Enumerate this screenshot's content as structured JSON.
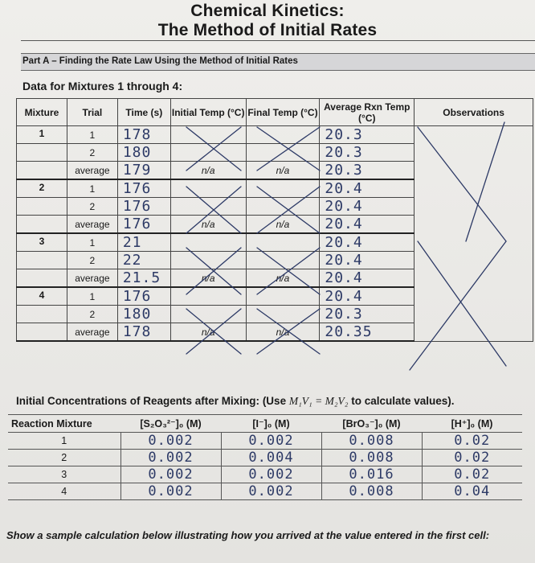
{
  "title_line1": "Chemical Kinetics:",
  "title_line2": "The Method of Initial Rates",
  "part_a_heading": "Part A – Finding the Rate Law Using the Method of Initial Rates",
  "data_heading": "Data for Mixtures 1 through 4:",
  "mixture_table": {
    "headers": {
      "mixture": "Mixture",
      "trial": "Trial",
      "time": "Time (s)",
      "initial_temp": "Initial Temp (°C)",
      "final_temp": "Final Temp (°C)",
      "avg_temp": "Average Rxn Temp (°C)",
      "observations": "Observations"
    },
    "rows": [
      {
        "mixture": "1",
        "trial": "1",
        "time": "178",
        "initial": "",
        "final": "",
        "avg": "20.3"
      },
      {
        "mixture": "",
        "trial": "2",
        "time": "180",
        "initial": "",
        "final": "",
        "avg": "20.3"
      },
      {
        "mixture": "",
        "trial": "average",
        "time": "179",
        "initial": "n/a",
        "final": "n/a",
        "avg": "20.3"
      },
      {
        "mixture": "2",
        "trial": "1",
        "time": "176",
        "initial": "",
        "final": "",
        "avg": "20.4"
      },
      {
        "mixture": "",
        "trial": "2",
        "time": "176",
        "initial": "",
        "final": "",
        "avg": "20.4"
      },
      {
        "mixture": "",
        "trial": "average",
        "time": "176",
        "initial": "n/a",
        "final": "n/a",
        "avg": "20.4"
      },
      {
        "mixture": "3",
        "trial": "1",
        "time": "21",
        "initial": "",
        "final": "",
        "avg": "20.4"
      },
      {
        "mixture": "",
        "trial": "2",
        "time": "22",
        "initial": "",
        "final": "",
        "avg": "20.4"
      },
      {
        "mixture": "",
        "trial": "average",
        "time": "21.5",
        "initial": "n/a",
        "final": "n/a",
        "avg": "20.4"
      },
      {
        "mixture": "4",
        "trial": "1",
        "time": "176",
        "initial": "",
        "final": "",
        "avg": "20.4"
      },
      {
        "mixture": "",
        "trial": "2",
        "time": "180",
        "initial": "",
        "final": "",
        "avg": "20.3"
      },
      {
        "mixture": "",
        "trial": "average",
        "time": "178",
        "initial": "n/a",
        "final": "n/a",
        "avg": "20.35"
      }
    ]
  },
  "concentrations": {
    "heading_prefix": "Initial Concentrations of Reagents after Mixing:",
    "heading_use": "(Use",
    "heading_formula": "M₁V₁ = M₂V₂",
    "heading_suffix": "to calculate values).",
    "headers": {
      "reaction_mixture": "Reaction Mixture",
      "s2o3": "[S₂O₃²⁻]₀ (M)",
      "iodide": "[I⁻]₀ (M)",
      "bro3": "[BrO₃⁻]₀ (M)",
      "h": "[H⁺]₀ (M)"
    },
    "rows": [
      {
        "mixture": "1",
        "s2o3": "0.002",
        "iodide": "0.002",
        "bro3": "0.008",
        "h": "0.02"
      },
      {
        "mixture": "2",
        "s2o3": "0.002",
        "iodide": "0.004",
        "bro3": "0.008",
        "h": "0.02"
      },
      {
        "mixture": "3",
        "s2o3": "0.002",
        "iodide": "0.002",
        "bro3": "0.016",
        "h": "0.02"
      },
      {
        "mixture": "4",
        "s2o3": "0.002",
        "iodide": "0.002",
        "bro3": "0.008",
        "h": "0.04"
      }
    ]
  },
  "sample_calc_prompt": "Show a sample calculation below illustrating how you arrived at the value entered in the first cell:",
  "colors": {
    "ink": "#2d3a66",
    "paper": "#ecebe8",
    "header_bar": "#d6d6d8"
  }
}
